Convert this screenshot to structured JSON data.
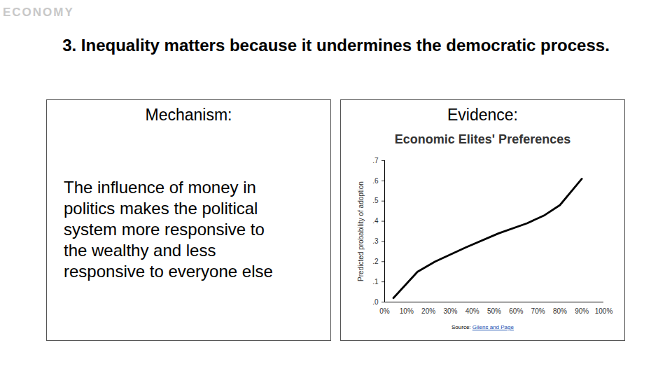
{
  "slide": {
    "logo": "ECONOMY",
    "title": "3. Inequality matters because it undermines the democratic process.",
    "left_heading": "Mechanism:",
    "body_lines": [
      "The influence of money in",
      "politics makes the political",
      "system more responsive to",
      "the wealthy and less",
      "responsive to everyone else"
    ],
    "right_heading": "Evidence:",
    "source_prefix": "Source: ",
    "source_link": "Gilens and Page"
  },
  "chart_data": {
    "type": "line",
    "title": "Economic Elites' Preferences",
    "y_label": "Predicted probability of adoption",
    "x": [
      4,
      15,
      23,
      37,
      52,
      65,
      73,
      80,
      90
    ],
    "values": [
      0.02,
      0.15,
      0.2,
      0.27,
      0.34,
      0.39,
      0.43,
      0.48,
      0.61
    ],
    "color": "#000000",
    "xlim": [
      0,
      100
    ],
    "xticks": [
      {
        "value": 0,
        "label": "0%"
      },
      {
        "value": 10,
        "label": "10%"
      },
      {
        "value": 20,
        "label": "20%"
      },
      {
        "value": 30,
        "label": "30%"
      },
      {
        "value": 40,
        "label": "40%"
      },
      {
        "value": 50,
        "label": "50%"
      },
      {
        "value": 60,
        "label": "60%"
      },
      {
        "value": 70,
        "label": "70%"
      },
      {
        "value": 80,
        "label": "80%"
      },
      {
        "value": 90,
        "label": "90%"
      },
      {
        "value": 100,
        "label": "100%"
      }
    ],
    "ylim": [
      0,
      0.7
    ],
    "yticks": [
      {
        "value": 0,
        "label": ".0"
      },
      {
        "value": 0.1,
        "label": ".1"
      },
      {
        "value": 0.2,
        "label": ".2"
      },
      {
        "value": 0.3,
        "label": ".3"
      },
      {
        "value": 0.4,
        "label": ".4"
      },
      {
        "value": 0.5,
        "label": ".5"
      },
      {
        "value": 0.6,
        "label": ".6"
      },
      {
        "value": 0.7,
        "label": ".7"
      }
    ],
    "grid": false
  }
}
